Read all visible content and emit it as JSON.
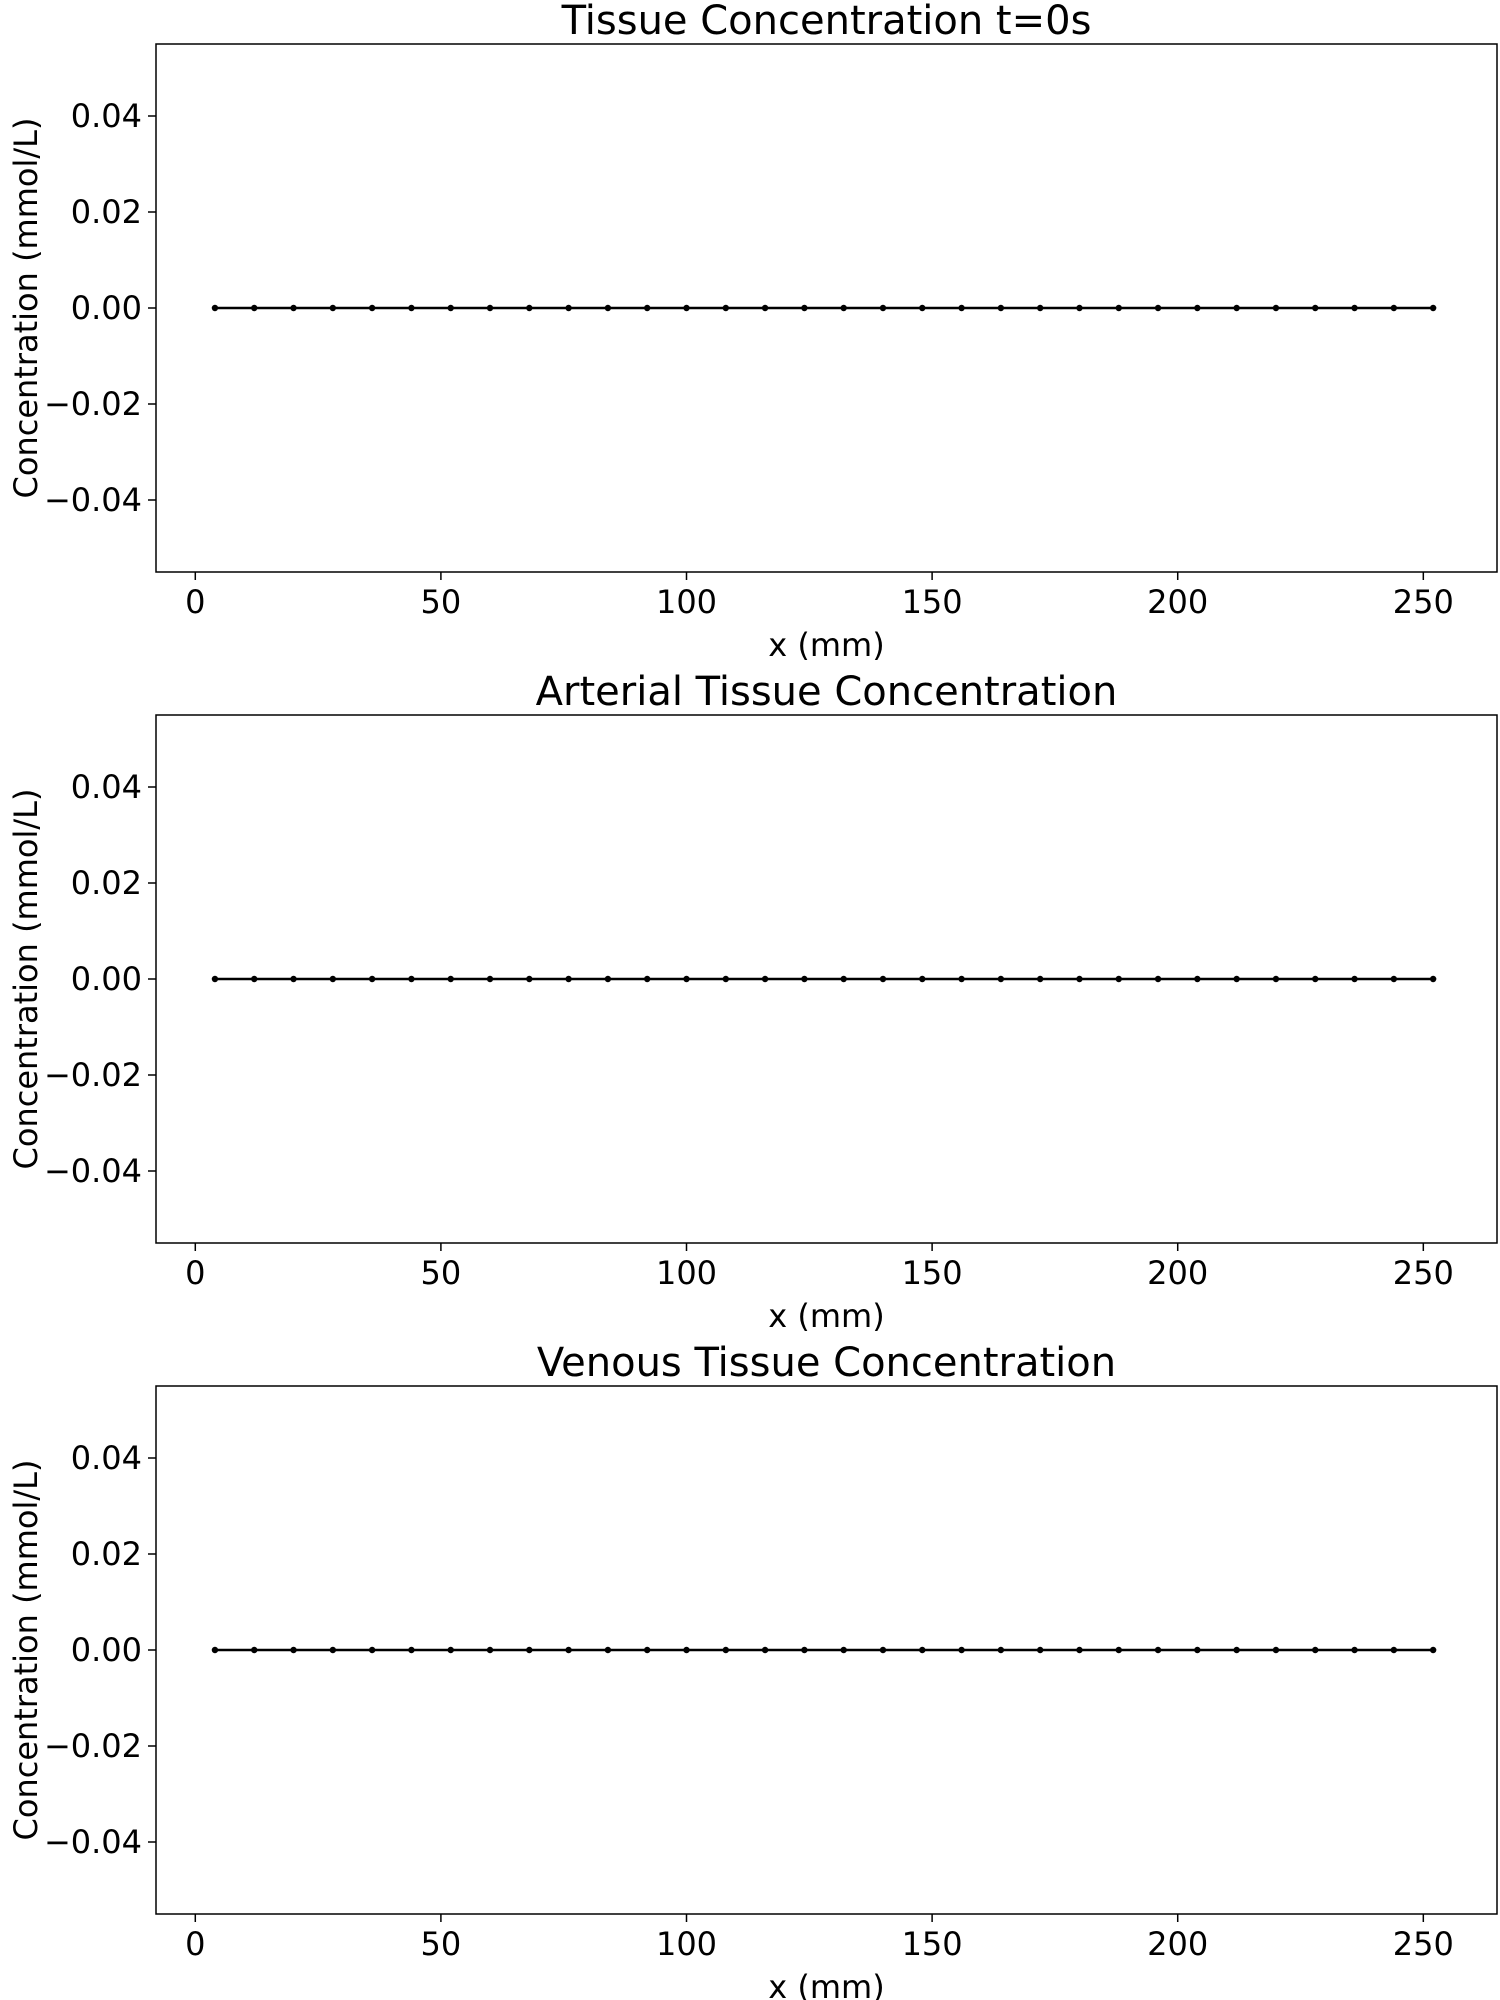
{
  "chart_data": [
    {
      "type": "line",
      "title": "Tissue Concentration t=0s",
      "xlabel": "x (mm)",
      "ylabel": "Concentration (mmol/L)",
      "xlim": [
        -8,
        265
      ],
      "ylim": [
        -0.055,
        0.055
      ],
      "xticks": [
        0,
        50,
        100,
        150,
        200,
        250
      ],
      "xtick_labels": [
        "0",
        "50",
        "100",
        "150",
        "200",
        "250"
      ],
      "yticks": [
        0.04,
        0.02,
        0.0,
        -0.02,
        -0.04
      ],
      "ytick_labels": [
        "0.04",
        "0.02",
        "0.00",
        "−0.02",
        "−0.04"
      ],
      "grid": false,
      "series": [
        {
          "name": "concentration",
          "color": "#000000",
          "x": [
            4,
            12,
            20,
            28,
            36,
            44,
            52,
            60,
            68,
            76,
            84,
            92,
            100,
            108,
            116,
            124,
            132,
            140,
            148,
            156,
            164,
            172,
            180,
            188,
            196,
            204,
            212,
            220,
            228,
            236,
            244,
            252
          ],
          "y": [
            0,
            0,
            0,
            0,
            0,
            0,
            0,
            0,
            0,
            0,
            0,
            0,
            0,
            0,
            0,
            0,
            0,
            0,
            0,
            0,
            0,
            0,
            0,
            0,
            0,
            0,
            0,
            0,
            0,
            0,
            0,
            0
          ]
        }
      ]
    },
    {
      "type": "line",
      "title": "Arterial Tissue Concentration",
      "xlabel": "x (mm)",
      "ylabel": "Concentration (mmol/L)",
      "xlim": [
        -8,
        265
      ],
      "ylim": [
        -0.055,
        0.055
      ],
      "xticks": [
        0,
        50,
        100,
        150,
        200,
        250
      ],
      "xtick_labels": [
        "0",
        "50",
        "100",
        "150",
        "200",
        "250"
      ],
      "yticks": [
        0.04,
        0.02,
        0.0,
        -0.02,
        -0.04
      ],
      "ytick_labels": [
        "0.04",
        "0.02",
        "0.00",
        "−0.02",
        "−0.04"
      ],
      "grid": false,
      "series": [
        {
          "name": "concentration",
          "color": "#000000",
          "x": [
            4,
            12,
            20,
            28,
            36,
            44,
            52,
            60,
            68,
            76,
            84,
            92,
            100,
            108,
            116,
            124,
            132,
            140,
            148,
            156,
            164,
            172,
            180,
            188,
            196,
            204,
            212,
            220,
            228,
            236,
            244,
            252
          ],
          "y": [
            0,
            0,
            0,
            0,
            0,
            0,
            0,
            0,
            0,
            0,
            0,
            0,
            0,
            0,
            0,
            0,
            0,
            0,
            0,
            0,
            0,
            0,
            0,
            0,
            0,
            0,
            0,
            0,
            0,
            0,
            0,
            0
          ]
        }
      ]
    },
    {
      "type": "line",
      "title": "Venous Tissue Concentration",
      "xlabel": "x (mm)",
      "ylabel": "Concentration (mmol/L)",
      "xlim": [
        -8,
        265
      ],
      "ylim": [
        -0.055,
        0.055
      ],
      "xticks": [
        0,
        50,
        100,
        150,
        200,
        250
      ],
      "xtick_labels": [
        "0",
        "50",
        "100",
        "150",
        "200",
        "250"
      ],
      "yticks": [
        0.04,
        0.02,
        0.0,
        -0.02,
        -0.04
      ],
      "ytick_labels": [
        "0.04",
        "0.02",
        "0.00",
        "−0.02",
        "−0.04"
      ],
      "grid": false,
      "series": [
        {
          "name": "concentration",
          "color": "#000000",
          "x": [
            4,
            12,
            20,
            28,
            36,
            44,
            52,
            60,
            68,
            76,
            84,
            92,
            100,
            108,
            116,
            124,
            132,
            140,
            148,
            156,
            164,
            172,
            180,
            188,
            196,
            204,
            212,
            220,
            228,
            236,
            244,
            252
          ],
          "y": [
            0,
            0,
            0,
            0,
            0,
            0,
            0,
            0,
            0,
            0,
            0,
            0,
            0,
            0,
            0,
            0,
            0,
            0,
            0,
            0,
            0,
            0,
            0,
            0,
            0,
            0,
            0,
            0,
            0,
            0,
            0,
            0
          ]
        }
      ]
    }
  ]
}
